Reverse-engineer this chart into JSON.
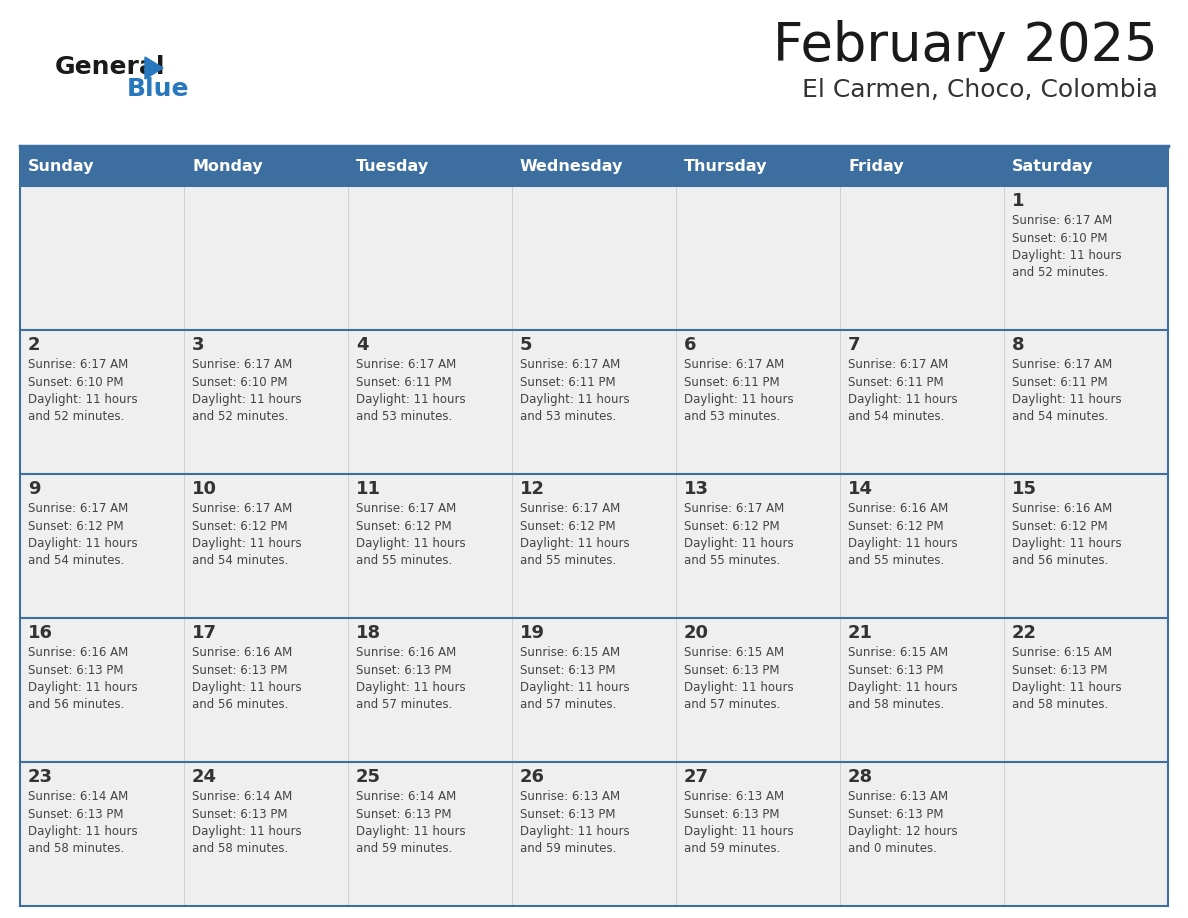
{
  "title": "February 2025",
  "subtitle": "El Carmen, Choco, Colombia",
  "header_color": "#3d6ea0",
  "header_text_color": "#ffffff",
  "cell_bg": "#efefef",
  "cell_border_color": "#3d6ea0",
  "vertical_line_color": "#cccccc",
  "day_names": [
    "Sunday",
    "Monday",
    "Tuesday",
    "Wednesday",
    "Thursday",
    "Friday",
    "Saturday"
  ],
  "title_color": "#1a1a1a",
  "subtitle_color": "#333333",
  "day_num_color": "#333333",
  "info_color": "#444444",
  "logo_general_color": "#1a1a1a",
  "logo_blue_color": "#2878be",
  "weeks": [
    [
      {
        "day": 0,
        "info": ""
      },
      {
        "day": 0,
        "info": ""
      },
      {
        "day": 0,
        "info": ""
      },
      {
        "day": 0,
        "info": ""
      },
      {
        "day": 0,
        "info": ""
      },
      {
        "day": 0,
        "info": ""
      },
      {
        "day": 1,
        "info": "Sunrise: 6:17 AM\nSunset: 6:10 PM\nDaylight: 11 hours\nand 52 minutes."
      }
    ],
    [
      {
        "day": 2,
        "info": "Sunrise: 6:17 AM\nSunset: 6:10 PM\nDaylight: 11 hours\nand 52 minutes."
      },
      {
        "day": 3,
        "info": "Sunrise: 6:17 AM\nSunset: 6:10 PM\nDaylight: 11 hours\nand 52 minutes."
      },
      {
        "day": 4,
        "info": "Sunrise: 6:17 AM\nSunset: 6:11 PM\nDaylight: 11 hours\nand 53 minutes."
      },
      {
        "day": 5,
        "info": "Sunrise: 6:17 AM\nSunset: 6:11 PM\nDaylight: 11 hours\nand 53 minutes."
      },
      {
        "day": 6,
        "info": "Sunrise: 6:17 AM\nSunset: 6:11 PM\nDaylight: 11 hours\nand 53 minutes."
      },
      {
        "day": 7,
        "info": "Sunrise: 6:17 AM\nSunset: 6:11 PM\nDaylight: 11 hours\nand 54 minutes."
      },
      {
        "day": 8,
        "info": "Sunrise: 6:17 AM\nSunset: 6:11 PM\nDaylight: 11 hours\nand 54 minutes."
      }
    ],
    [
      {
        "day": 9,
        "info": "Sunrise: 6:17 AM\nSunset: 6:12 PM\nDaylight: 11 hours\nand 54 minutes."
      },
      {
        "day": 10,
        "info": "Sunrise: 6:17 AM\nSunset: 6:12 PM\nDaylight: 11 hours\nand 54 minutes."
      },
      {
        "day": 11,
        "info": "Sunrise: 6:17 AM\nSunset: 6:12 PM\nDaylight: 11 hours\nand 55 minutes."
      },
      {
        "day": 12,
        "info": "Sunrise: 6:17 AM\nSunset: 6:12 PM\nDaylight: 11 hours\nand 55 minutes."
      },
      {
        "day": 13,
        "info": "Sunrise: 6:17 AM\nSunset: 6:12 PM\nDaylight: 11 hours\nand 55 minutes."
      },
      {
        "day": 14,
        "info": "Sunrise: 6:16 AM\nSunset: 6:12 PM\nDaylight: 11 hours\nand 55 minutes."
      },
      {
        "day": 15,
        "info": "Sunrise: 6:16 AM\nSunset: 6:12 PM\nDaylight: 11 hours\nand 56 minutes."
      }
    ],
    [
      {
        "day": 16,
        "info": "Sunrise: 6:16 AM\nSunset: 6:13 PM\nDaylight: 11 hours\nand 56 minutes."
      },
      {
        "day": 17,
        "info": "Sunrise: 6:16 AM\nSunset: 6:13 PM\nDaylight: 11 hours\nand 56 minutes."
      },
      {
        "day": 18,
        "info": "Sunrise: 6:16 AM\nSunset: 6:13 PM\nDaylight: 11 hours\nand 57 minutes."
      },
      {
        "day": 19,
        "info": "Sunrise: 6:15 AM\nSunset: 6:13 PM\nDaylight: 11 hours\nand 57 minutes."
      },
      {
        "day": 20,
        "info": "Sunrise: 6:15 AM\nSunset: 6:13 PM\nDaylight: 11 hours\nand 57 minutes."
      },
      {
        "day": 21,
        "info": "Sunrise: 6:15 AM\nSunset: 6:13 PM\nDaylight: 11 hours\nand 58 minutes."
      },
      {
        "day": 22,
        "info": "Sunrise: 6:15 AM\nSunset: 6:13 PM\nDaylight: 11 hours\nand 58 minutes."
      }
    ],
    [
      {
        "day": 23,
        "info": "Sunrise: 6:14 AM\nSunset: 6:13 PM\nDaylight: 11 hours\nand 58 minutes."
      },
      {
        "day": 24,
        "info": "Sunrise: 6:14 AM\nSunset: 6:13 PM\nDaylight: 11 hours\nand 58 minutes."
      },
      {
        "day": 25,
        "info": "Sunrise: 6:14 AM\nSunset: 6:13 PM\nDaylight: 11 hours\nand 59 minutes."
      },
      {
        "day": 26,
        "info": "Sunrise: 6:13 AM\nSunset: 6:13 PM\nDaylight: 11 hours\nand 59 minutes."
      },
      {
        "day": 27,
        "info": "Sunrise: 6:13 AM\nSunset: 6:13 PM\nDaylight: 11 hours\nand 59 minutes."
      },
      {
        "day": 28,
        "info": "Sunrise: 6:13 AM\nSunset: 6:13 PM\nDaylight: 12 hours\nand 0 minutes."
      },
      {
        "day": 0,
        "info": ""
      }
    ]
  ]
}
